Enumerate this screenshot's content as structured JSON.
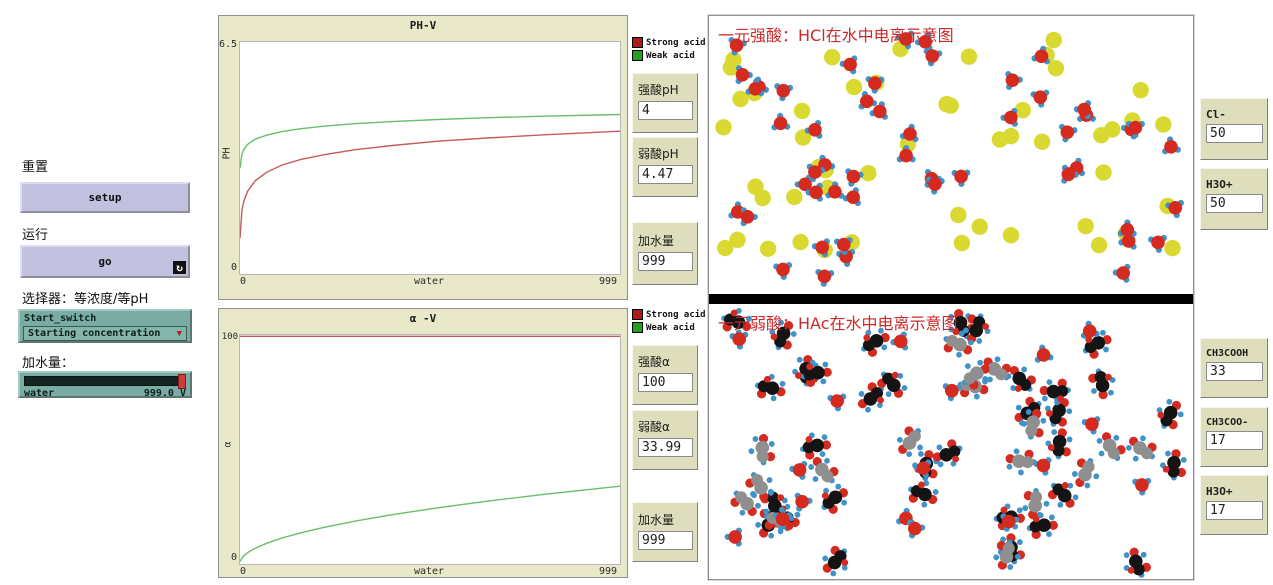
{
  "left_panel": {
    "reset_label": "重置",
    "setup_button": "setup",
    "run_label": "运行",
    "go_button": "go",
    "chooser_label": "选择器：等浓度/等pH",
    "chooser_name": "Start_switch",
    "chooser_value": "Starting concentration",
    "water_label": "加水量：",
    "slider_name": "water",
    "slider_value": "999.0",
    "slider_units": "V"
  },
  "legend": {
    "strong": "Strong acid",
    "weak": "Weak acid",
    "strong_color": "#aa1c1c",
    "weak_color": "#1fa21f"
  },
  "plots": [
    {
      "title": "PH-V",
      "ylabel": "PH",
      "ymax": "6.5",
      "ymin": "0",
      "xmin": "0",
      "xlabel": "water",
      "xmax": "999"
    },
    {
      "title": "α -V",
      "ylabel": "α",
      "ymax": "100",
      "ymin": "0",
      "xmin": "0",
      "xlabel": "water",
      "xmax": "999"
    }
  ],
  "monitors_mid": [
    {
      "label": "强酸pH",
      "value": "4"
    },
    {
      "label": "弱酸pH",
      "value": "4.47"
    },
    {
      "label": "加水量",
      "value": "999"
    },
    {
      "label": "强酸α",
      "value": "100"
    },
    {
      "label": "弱酸α",
      "value": "33.99"
    },
    {
      "label": "加水量",
      "value": "999"
    }
  ],
  "world": {
    "title_top": "一元强酸：HCl在水中电离示意图",
    "title_bottom": "一元弱酸：HAc在水中电离示意图",
    "particles_top": [
      {
        "type": "chloride",
        "count": 50
      },
      {
        "type": "hydronium",
        "count": 50
      }
    ],
    "particles_bottom": [
      {
        "type": "acetic-acid",
        "count": 33
      },
      {
        "type": "acetate",
        "count": 17
      },
      {
        "type": "hydronium",
        "count": 17
      }
    ],
    "colors": {
      "chloride": "#d9d932",
      "oxygen": "#d42a20",
      "hydrogen": "#3f93c9",
      "carbon_black": "#141414",
      "carbon_gray": "#8f8f8f"
    }
  },
  "monitors_right": [
    {
      "label": "Cl-",
      "value": "50"
    },
    {
      "label": "H3O+",
      "value": "50"
    },
    {
      "label": "CH3COOH",
      "value": "33"
    },
    {
      "label": "CH3COO-",
      "value": "17"
    },
    {
      "label": "H3O+",
      "value": "17"
    }
  ],
  "chart_data": [
    {
      "type": "line",
      "title": "PH-V",
      "xlabel": "water",
      "ylabel": "PH",
      "xlim": [
        0,
        999
      ],
      "ylim": [
        0,
        6.5
      ],
      "legend_position": "outside-top-right",
      "grid": false,
      "x": [
        0,
        5,
        10,
        20,
        40,
        70,
        110,
        160,
        220,
        300,
        400,
        520,
        650,
        800,
        999
      ],
      "series": [
        {
          "name": "Strong acid",
          "color": "#c75b5b",
          "values": [
            1.0,
            1.78,
            2.04,
            2.32,
            2.61,
            2.85,
            3.05,
            3.21,
            3.34,
            3.48,
            3.6,
            3.72,
            3.81,
            3.9,
            4.0
          ]
        },
        {
          "name": "Weak acid",
          "color": "#69bf69",
          "values": [
            2.97,
            3.36,
            3.49,
            3.63,
            3.78,
            3.89,
            3.99,
            4.07,
            4.14,
            4.21,
            4.27,
            4.33,
            4.38,
            4.42,
            4.47
          ]
        }
      ]
    },
    {
      "type": "line",
      "title": "α -V",
      "xlabel": "water",
      "ylabel": "α",
      "xlim": [
        0,
        999
      ],
      "ylim": [
        0,
        100
      ],
      "legend_position": "outside-top-right",
      "grid": false,
      "x": [
        0,
        5,
        10,
        20,
        40,
        70,
        110,
        160,
        220,
        300,
        400,
        520,
        650,
        800,
        999
      ],
      "series": [
        {
          "name": "Strong acid",
          "color": "#c75b5b",
          "values": [
            100,
            100,
            100,
            100,
            100,
            100,
            100,
            100,
            100,
            100,
            100,
            100,
            100,
            100,
            100
          ]
        },
        {
          "name": "Weak acid",
          "color": "#69bf69",
          "values": [
            1.08,
            2.63,
            3.56,
            4.92,
            6.88,
            9.06,
            11.33,
            13.64,
            15.98,
            18.65,
            21.53,
            24.54,
            27.43,
            30.43,
            33.99
          ]
        }
      ]
    }
  ]
}
